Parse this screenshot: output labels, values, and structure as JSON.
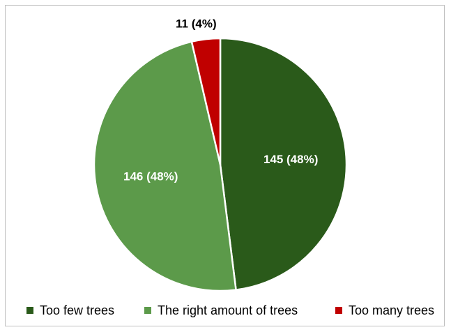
{
  "chart_data": {
    "type": "pie",
    "title": "",
    "categories": [
      "Too few trees",
      "The right amount of trees",
      "Too many trees"
    ],
    "values": [
      145,
      146,
      11
    ],
    "percent_labels": [
      "48%",
      "48%",
      "4%"
    ],
    "data_labels": [
      "145 (48%)",
      "146 (48%)",
      "11 (4%)"
    ],
    "colors": [
      "#2a5a1a",
      "#5c9a4a",
      "#c00000"
    ],
    "label_colors": [
      "#ffffff",
      "#ffffff",
      "#000000"
    ],
    "start_angle_deg": 0,
    "direction": "clockwise",
    "legend_position": "bottom"
  }
}
